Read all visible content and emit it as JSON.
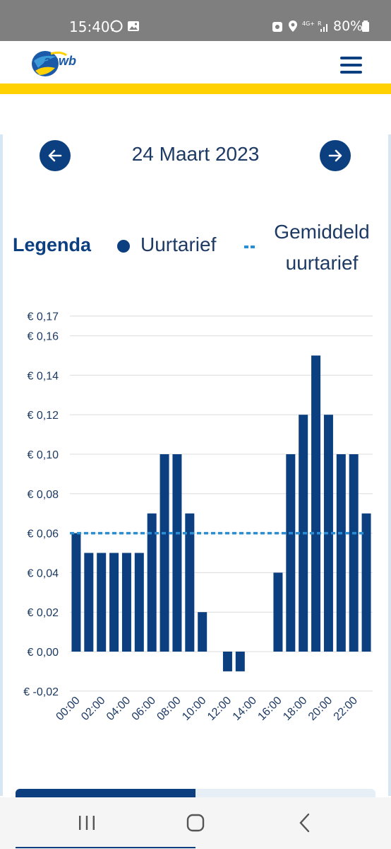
{
  "status_bar": {
    "time": "15:40",
    "battery": "80%"
  },
  "app": {
    "brand": "anwb"
  },
  "date_nav": {
    "date": "24 Maart 2023"
  },
  "legend": {
    "title": "Legenda",
    "series_label": "Uurtarief",
    "average_label_line1": "Gemiddeld",
    "average_label_line2": "uurtarief"
  },
  "colors": {
    "bar": "#0c3f80",
    "average": "#2a8ed4",
    "accent": "#ffd100"
  },
  "chart_data": {
    "type": "bar",
    "categories": [
      "00:00",
      "01:00",
      "02:00",
      "03:00",
      "04:00",
      "05:00",
      "06:00",
      "07:00",
      "08:00",
      "09:00",
      "10:00",
      "11:00",
      "12:00",
      "13:00",
      "14:00",
      "15:00",
      "16:00",
      "17:00",
      "18:00",
      "19:00",
      "20:00",
      "21:00",
      "22:00",
      "23:00"
    ],
    "x_tick_labels": [
      "00:00",
      "02:00",
      "04:00",
      "06:00",
      "08:00",
      "10:00",
      "12:00",
      "14:00",
      "16:00",
      "18:00",
      "20:00",
      "22:00"
    ],
    "values": [
      0.06,
      0.05,
      0.05,
      0.05,
      0.05,
      0.05,
      0.07,
      0.1,
      0.1,
      0.07,
      0.02,
      0,
      -0.01,
      -0.01,
      0,
      0,
      0.04,
      0.1,
      0.12,
      0.15,
      0.12,
      0.1,
      0.1,
      0.07
    ],
    "average": 0.06,
    "y_ticks": [
      -0.02,
      0.0,
      0.02,
      0.04,
      0.06,
      0.08,
      0.1,
      0.12,
      0.14,
      0.16,
      0.17
    ],
    "y_tick_labels": [
      "€ -0,02",
      "€ 0,00",
      "€ 0,02",
      "€ 0,04",
      "€ 0,06",
      "€ 0,08",
      "€ 0,10",
      "€ 0,12",
      "€ 0,14",
      "€ 0,16",
      "€ 0,17"
    ],
    "ylim": [
      -0.02,
      0.17
    ],
    "grid": true,
    "legend_position": "top"
  }
}
